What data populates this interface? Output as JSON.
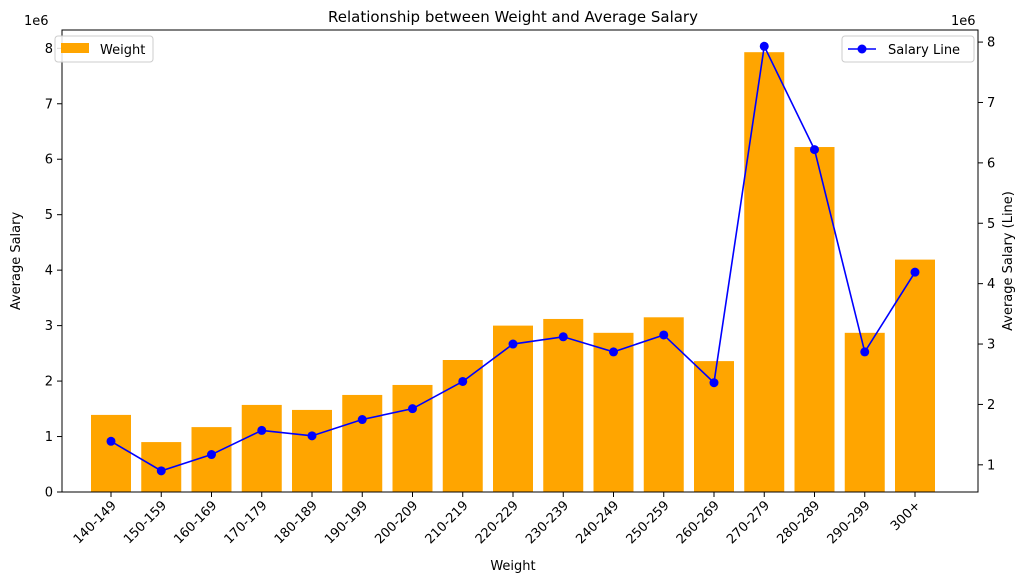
{
  "chart_data": {
    "type": "bar+line",
    "title": "Relationship between Weight and Average Salary",
    "xlabel": "Weight",
    "ylabel_left": "Average Salary",
    "ylabel_right": "Average Salary (Line)",
    "left_offset_label": "1e6",
    "right_offset_label": "1e6",
    "categories": [
      "140-149",
      "150-159",
      "160-169",
      "170-179",
      "180-189",
      "190-199",
      "200-209",
      "210-219",
      "220-229",
      "230-239",
      "240-249",
      "250-259",
      "260-269",
      "270-279",
      "280-289",
      "290-299",
      "300+"
    ],
    "series": [
      {
        "name": "Weight",
        "kind": "bar",
        "axis": "left",
        "color": "#FFA500",
        "values": [
          1.39,
          0.9,
          1.17,
          1.57,
          1.48,
          1.75,
          1.93,
          2.38,
          3.0,
          3.12,
          2.87,
          3.15,
          2.36,
          7.93,
          6.22,
          2.87,
          4.19
        ],
        "unit_multiplier": 1000000
      },
      {
        "name": "Salary Line",
        "kind": "line",
        "axis": "right",
        "color": "#0000FF",
        "values": [
          1.39,
          0.9,
          1.17,
          1.57,
          1.48,
          1.75,
          1.93,
          2.38,
          3.0,
          3.12,
          2.87,
          3.15,
          2.36,
          7.93,
          6.22,
          2.87,
          4.19
        ],
        "unit_multiplier": 1000000
      }
    ],
    "ylim_left": [
      0,
      8.33
    ],
    "ylim_right": [
      0.55,
      8.2
    ],
    "yticks_left": [
      "0",
      "1",
      "2",
      "3",
      "4",
      "5",
      "6",
      "7",
      "8"
    ],
    "yticks_right": [
      "1",
      "2",
      "3",
      "4",
      "5",
      "6",
      "7",
      "8"
    ],
    "grid": false,
    "legend_left": {
      "label": "Weight",
      "placement": "top-left"
    },
    "legend_right": {
      "label": "Salary Line",
      "placement": "top-right"
    }
  }
}
